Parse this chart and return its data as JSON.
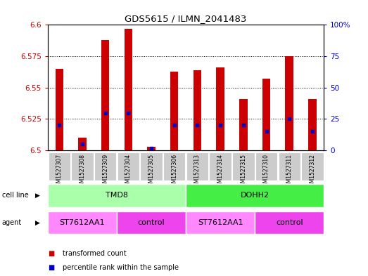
{
  "title": "GDS5615 / ILMN_2041483",
  "samples": [
    "GSM1527307",
    "GSM1527308",
    "GSM1527309",
    "GSM1527304",
    "GSM1527305",
    "GSM1527306",
    "GSM1527313",
    "GSM1527314",
    "GSM1527315",
    "GSM1527310",
    "GSM1527311",
    "GSM1527312"
  ],
  "transformed_counts": [
    6.565,
    6.51,
    6.588,
    6.597,
    6.503,
    6.563,
    6.564,
    6.566,
    6.541,
    6.557,
    6.575,
    6.541
  ],
  "percentile_ranks": [
    20,
    5,
    30,
    30,
    2,
    20,
    20,
    20,
    20,
    15,
    25,
    15
  ],
  "ymin": 6.5,
  "ymax": 6.6,
  "yticks": [
    6.5,
    6.525,
    6.55,
    6.575,
    6.6
  ],
  "ytick_labels_left": [
    "6.5",
    "6.525",
    "6.55",
    "6.575",
    "6.6"
  ],
  "ytick_labels_right": [
    "0",
    "25",
    "50",
    "75",
    "100%"
  ],
  "bar_color": "#cc0000",
  "percentile_color": "#0000cc",
  "cell_line_groups": [
    {
      "label": "TMD8",
      "start": 0,
      "end": 6,
      "color": "#aaffaa"
    },
    {
      "label": "DOHH2",
      "start": 6,
      "end": 12,
      "color": "#44ee44"
    }
  ],
  "agent_groups": [
    {
      "label": "ST7612AA1",
      "start": 0,
      "end": 3,
      "color": "#ff88ff"
    },
    {
      "label": "control",
      "start": 3,
      "end": 6,
      "color": "#ee44ee"
    },
    {
      "label": "ST7612AA1",
      "start": 6,
      "end": 9,
      "color": "#ff88ff"
    },
    {
      "label": "control",
      "start": 9,
      "end": 12,
      "color": "#ee44ee"
    }
  ],
  "legend_items": [
    {
      "label": "transformed count",
      "color": "#cc0000"
    },
    {
      "label": "percentile rank within the sample",
      "color": "#0000cc"
    }
  ],
  "bg_color": "#ffffff",
  "plot_bg": "#ffffff",
  "grid_color": "#000000",
  "sample_bg": "#cccccc",
  "bar_width": 0.35
}
